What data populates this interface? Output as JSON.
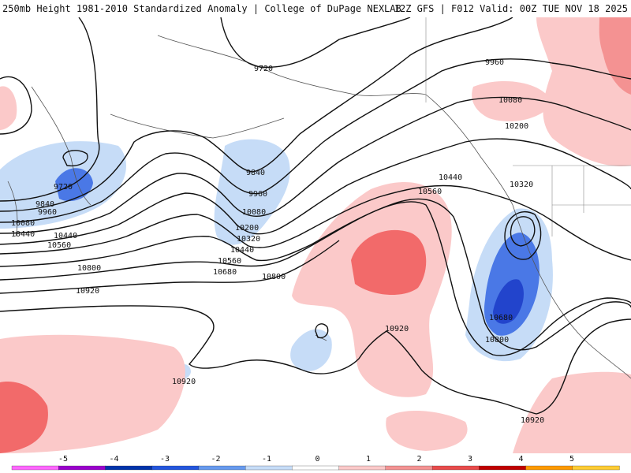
{
  "title": {
    "left": "250mb Height 1981-2010 Standardized Anomaly | College of DuPage NEXLAB",
    "right": "12Z GFS | F012 Valid: 00Z TUE NOV 18 2025"
  },
  "contour_labels": [
    "9720",
    "9840",
    "9960",
    "10080",
    "10200",
    "10320",
    "10440",
    "10560",
    "10680",
    "10800",
    "10920"
  ],
  "legend": {
    "ticks": [
      "-5",
      "-4",
      "-3",
      "-2",
      "-1",
      "0",
      "1",
      "2",
      "3",
      "4",
      "5"
    ],
    "colors": [
      "#ff66ff",
      "#9900cc",
      "#0033aa",
      "#2255dd",
      "#6699ee",
      "#c6dcf7",
      "#ffffff",
      "#fbc9c9",
      "#f49292",
      "#e84a4a",
      "#c00000",
      "#ff9900",
      "#ffcc33"
    ]
  }
}
